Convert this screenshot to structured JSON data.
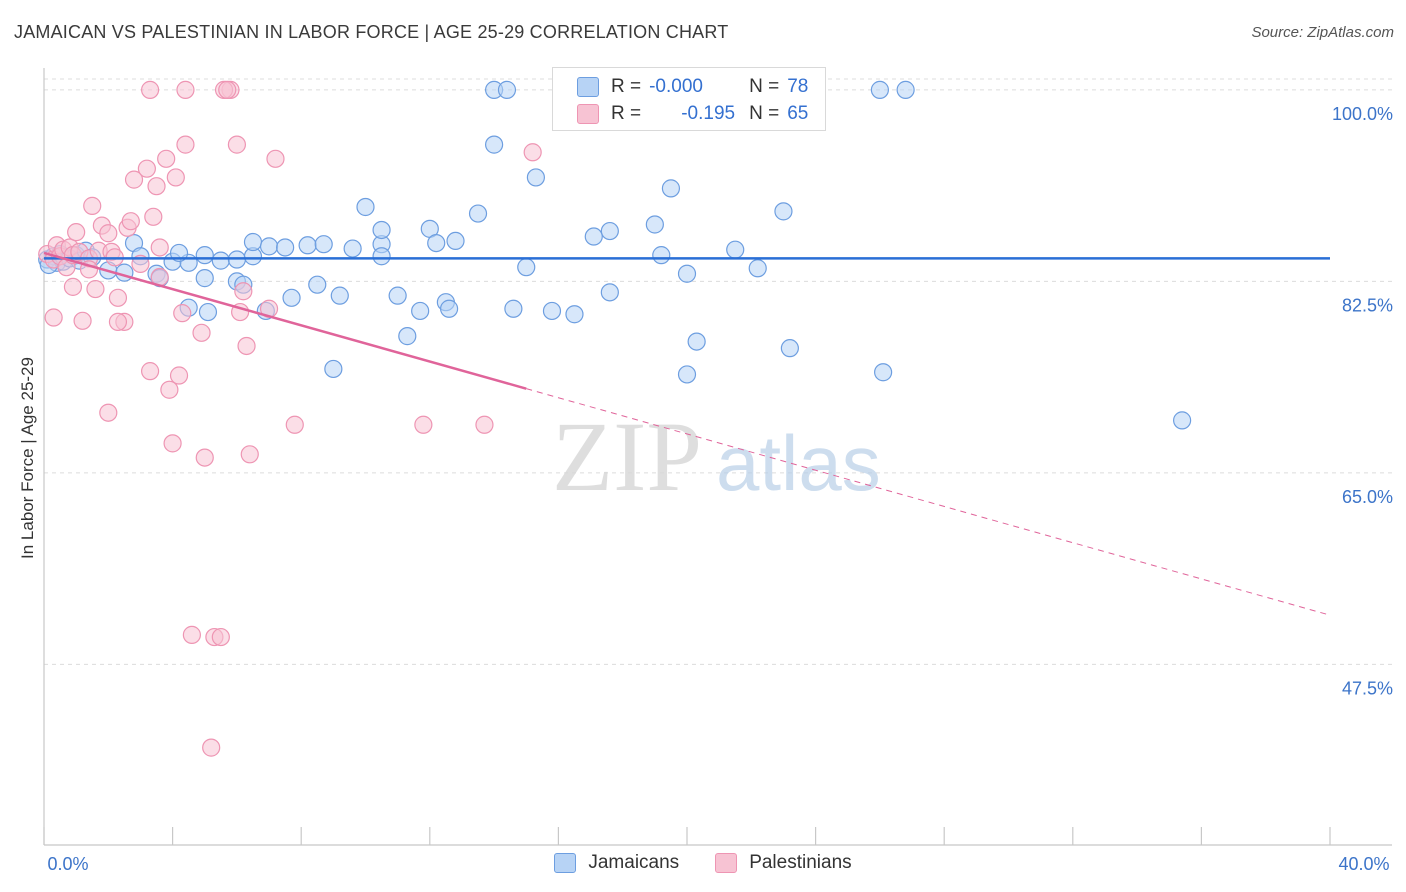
{
  "title": "JAMAICAN VS PALESTINIAN IN LABOR FORCE | AGE 25-29 CORRELATION CHART",
  "source": "Source: ZipAtlas.com",
  "watermark": {
    "zip": "ZIP",
    "atlas": "atlas"
  },
  "legend_top": [
    {
      "r_label": "R =",
      "r_value": "-0.000",
      "n_label": "N =",
      "n_value": "78"
    },
    {
      "r_label": "R =",
      "r_value": "-0.195",
      "n_label": "N =",
      "n_value": "65"
    }
  ],
  "legend_bottom": [
    "Jamaicans",
    "Palestinians"
  ],
  "colors": {
    "blue_fill": "#b7d3f5",
    "blue_stroke": "#6d9ee0",
    "blue_line": "#2a6fd6",
    "pink_fill": "#f7c3d3",
    "pink_stroke": "#ee95b3",
    "pink_line": "#e0649a",
    "grid": "#dcdcdc",
    "tick_text": "#3c74c9"
  },
  "chart_data": {
    "type": "scatter",
    "title": "JAMAICAN VS PALESTINIAN IN LABOR FORCE | AGE 25-29 CORRELATION CHART",
    "xlabel": "",
    "ylabel": "In Labor Force | Age 25-29",
    "xlim": [
      0,
      40
    ],
    "ylim": [
      31,
      102
    ],
    "x_tick_labels": [
      "0.0%",
      "40.0%"
    ],
    "y_ticks": [
      47.5,
      65.0,
      82.5,
      100.0
    ],
    "y_tick_labels": [
      "47.5%",
      "65.0%",
      "82.5%",
      "100.0%"
    ],
    "grid": true,
    "legend_position": "top-center",
    "series": [
      {
        "name": "Jamaicans",
        "r": -0.0,
        "n": 78,
        "trend": {
          "x": [
            0,
            40
          ],
          "y": [
            84.6,
            84.6
          ]
        },
        "points": [
          [
            0.1,
            84.5
          ],
          [
            0.3,
            84.8
          ],
          [
            0.4,
            84.2
          ],
          [
            0.5,
            85.0
          ],
          [
            0.6,
            84.3
          ],
          [
            0.8,
            84.6
          ],
          [
            1.0,
            84.9
          ],
          [
            1.1,
            84.4
          ],
          [
            1.3,
            85.3
          ],
          [
            1.5,
            84.7
          ],
          [
            2.0,
            83.5
          ],
          [
            2.5,
            83.3
          ],
          [
            2.8,
            86.0
          ],
          [
            3.0,
            84.8
          ],
          [
            3.5,
            83.2
          ],
          [
            3.6,
            82.8
          ],
          [
            4.0,
            84.3
          ],
          [
            4.5,
            84.2
          ],
          [
            4.2,
            85.1
          ],
          [
            4.5,
            80.1
          ],
          [
            5.0,
            84.9
          ],
          [
            5.0,
            82.8
          ],
          [
            5.1,
            79.7
          ],
          [
            5.5,
            84.4
          ],
          [
            6.0,
            84.5
          ],
          [
            6.0,
            82.5
          ],
          [
            6.5,
            84.8
          ],
          [
            6.2,
            82.2
          ],
          [
            6.5,
            86.1
          ],
          [
            7.0,
            85.7
          ],
          [
            6.9,
            79.8
          ],
          [
            7.5,
            85.6
          ],
          [
            7.7,
            81.0
          ],
          [
            8.2,
            85.8
          ],
          [
            8.5,
            82.2
          ],
          [
            8.7,
            85.9
          ],
          [
            9.0,
            74.5
          ],
          [
            9.2,
            81.2
          ],
          [
            9.6,
            85.5
          ],
          [
            10.0,
            89.3
          ],
          [
            10.5,
            85.9
          ],
          [
            10.5,
            84.8
          ],
          [
            10.5,
            87.2
          ],
          [
            11.0,
            81.2
          ],
          [
            11.3,
            77.5
          ],
          [
            11.7,
            79.8
          ],
          [
            12.0,
            87.3
          ],
          [
            12.2,
            86.0
          ],
          [
            12.5,
            80.6
          ],
          [
            12.6,
            80.0
          ],
          [
            12.8,
            86.2
          ],
          [
            13.5,
            88.7
          ],
          [
            14.0,
            95.0
          ],
          [
            14.0,
            100.0
          ],
          [
            14.4,
            100.0
          ],
          [
            14.6,
            80.0
          ],
          [
            15.0,
            83.8
          ],
          [
            15.3,
            92.0
          ],
          [
            15.8,
            79.8
          ],
          [
            16.5,
            79.5
          ],
          [
            17.1,
            86.6
          ],
          [
            17.6,
            87.1
          ],
          [
            17.6,
            81.5
          ],
          [
            19.0,
            87.7
          ],
          [
            19.2,
            84.9
          ],
          [
            19.5,
            91.0
          ],
          [
            20.0,
            83.2
          ],
          [
            20.3,
            77.0
          ],
          [
            20.0,
            74.0
          ],
          [
            21.5,
            85.4
          ],
          [
            22.2,
            83.7
          ],
          [
            23.0,
            88.9
          ],
          [
            23.2,
            76.4
          ],
          [
            26.0,
            100.0
          ],
          [
            26.8,
            100.0
          ],
          [
            26.1,
            74.2
          ],
          [
            35.4,
            69.8
          ],
          [
            0.15,
            84.0
          ]
        ]
      },
      {
        "name": "Palestinians",
        "r": -0.195,
        "n": 65,
        "trend": {
          "x": [
            0,
            15
          ],
          "y": [
            85.1,
            72.7
          ]
        },
        "trend_dashed": {
          "x": [
            15,
            40
          ],
          "y": [
            72.7,
            52.0
          ]
        },
        "points": [
          [
            0.1,
            85.0
          ],
          [
            0.3,
            84.5
          ],
          [
            0.4,
            85.8
          ],
          [
            0.5,
            84.8
          ],
          [
            0.6,
            85.4
          ],
          [
            0.7,
            83.8
          ],
          [
            0.8,
            85.6
          ],
          [
            0.9,
            84.9
          ],
          [
            1.0,
            87.0
          ],
          [
            1.1,
            85.2
          ],
          [
            1.4,
            84.6
          ],
          [
            1.5,
            89.4
          ],
          [
            1.6,
            81.8
          ],
          [
            1.7,
            85.3
          ],
          [
            1.8,
            87.6
          ],
          [
            2.0,
            86.9
          ],
          [
            2.1,
            85.2
          ],
          [
            2.2,
            84.7
          ],
          [
            2.3,
            81.0
          ],
          [
            2.5,
            78.8
          ],
          [
            2.6,
            87.4
          ],
          [
            2.7,
            88.0
          ],
          [
            2.8,
            91.8
          ],
          [
            3.0,
            84.1
          ],
          [
            3.2,
            92.8
          ],
          [
            3.3,
            74.3
          ],
          [
            3.4,
            88.4
          ],
          [
            3.5,
            91.2
          ],
          [
            3.6,
            85.6
          ],
          [
            3.8,
            93.7
          ],
          [
            3.9,
            72.6
          ],
          [
            4.0,
            67.7
          ],
          [
            4.1,
            92.0
          ],
          [
            4.2,
            73.9
          ],
          [
            4.4,
            95.0
          ],
          [
            4.3,
            79.6
          ],
          [
            4.6,
            50.2
          ],
          [
            4.9,
            77.8
          ],
          [
            5.0,
            66.4
          ],
          [
            5.2,
            39.9
          ],
          [
            5.3,
            50.0
          ],
          [
            5.5,
            50.0
          ],
          [
            5.8,
            100.0
          ],
          [
            5.6,
            100.0
          ],
          [
            5.7,
            100.0
          ],
          [
            6.0,
            95.0
          ],
          [
            6.1,
            79.7
          ],
          [
            6.2,
            81.6
          ],
          [
            6.3,
            76.6
          ],
          [
            6.4,
            66.7
          ],
          [
            7.0,
            80.0
          ],
          [
            7.2,
            93.7
          ],
          [
            7.8,
            69.4
          ],
          [
            3.3,
            100.0
          ],
          [
            4.4,
            100.0
          ],
          [
            11.8,
            69.4
          ],
          [
            13.7,
            69.4
          ],
          [
            15.2,
            94.3
          ],
          [
            0.3,
            79.2
          ],
          [
            0.9,
            82.0
          ],
          [
            1.2,
            78.9
          ],
          [
            1.4,
            83.6
          ],
          [
            2.0,
            70.5
          ],
          [
            2.3,
            78.8
          ],
          [
            3.6,
            82.9
          ]
        ]
      }
    ]
  }
}
